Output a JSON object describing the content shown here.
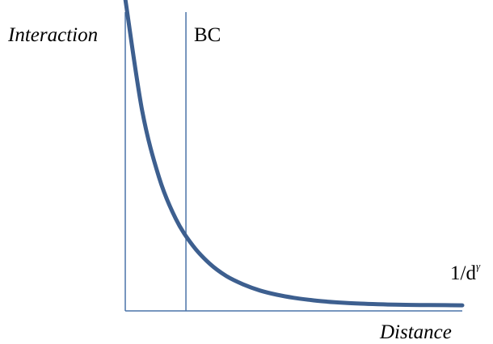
{
  "chart_data": {
    "type": "line",
    "ylabel": "Interaction",
    "xlabel": "Distance",
    "series": [
      {
        "name": "1/d",
        "name_superscript": "γ",
        "x": [
          0.0,
          0.05,
          0.1,
          0.15,
          0.2,
          0.25,
          0.3,
          0.35,
          0.4,
          0.45,
          0.5,
          0.55,
          0.6,
          0.65,
          0.7,
          0.75,
          0.8,
          0.85,
          0.9,
          0.95,
          1.0
        ],
        "y": [
          1.12,
          0.72,
          0.48,
          0.33,
          0.235,
          0.17,
          0.125,
          0.095,
          0.073,
          0.058,
          0.047,
          0.039,
          0.033,
          0.029,
          0.026,
          0.024,
          0.0225,
          0.0215,
          0.021,
          0.0205,
          0.02
        ]
      }
    ],
    "reference_line": {
      "label": "BC",
      "x": 0.18
    },
    "xlim": [
      0,
      1.0
    ],
    "ylim": [
      0,
      1.0
    ],
    "grid": false,
    "legend": "none",
    "colors": {
      "curve": "#3d5f8f",
      "axes": "#4a74a8",
      "text": "#000000"
    }
  }
}
